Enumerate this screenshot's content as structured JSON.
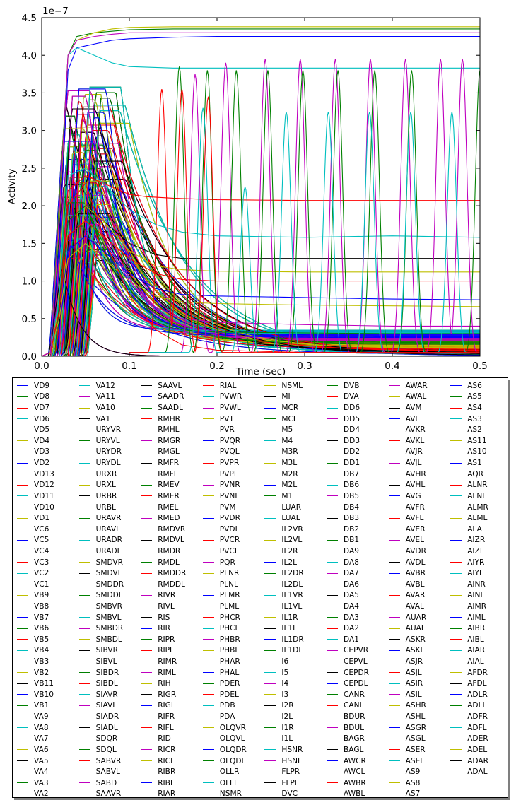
{
  "chart_data": {
    "type": "line",
    "title": "",
    "xlabel": "Time (sec)",
    "ylabel": "Activity",
    "offset_text": "1e−7",
    "xlim": [
      0,
      0.5
    ],
    "ylim": [
      0,
      4.5
    ],
    "grid": false,
    "legend_placement": "below-plot",
    "x_ticks": [
      "0.0",
      "0.1",
      "0.2",
      "0.3",
      "0.4",
      "0.5"
    ],
    "y_ticks": [
      "0.0",
      "0.5",
      "1.0",
      "1.5",
      "2.0",
      "2.5",
      "3.0",
      "3.5",
      "4.0",
      "4.5"
    ],
    "color_cycle": [
      "#0000ff",
      "#008000",
      "#ff0000",
      "#00bfbf",
      "#bf00bf",
      "#bfbf00",
      "#000000"
    ],
    "series_names": [
      "VD9",
      "VD8",
      "VD7",
      "VD6",
      "VD5",
      "VD4",
      "VD3",
      "VD2",
      "VD13",
      "VD12",
      "VD11",
      "VD10",
      "VD1",
      "VC6",
      "VC5",
      "VC4",
      "VC3",
      "VC2",
      "VC1",
      "VB9",
      "VB8",
      "VB7",
      "VB6",
      "VB5",
      "VB4",
      "VB3",
      "VB2",
      "VB11",
      "VB10",
      "VB1",
      "VA9",
      "VA8",
      "VA7",
      "VA6",
      "VA5",
      "VA4",
      "VA3",
      "VA2",
      "VA12",
      "VA11",
      "VA10",
      "VA1",
      "URYVR",
      "URYVL",
      "URYDR",
      "URYDL",
      "URXR",
      "URXL",
      "URBR",
      "URBL",
      "URAVR",
      "URAVL",
      "URADR",
      "URADL",
      "SMDVR",
      "SMDVL",
      "SMDDR",
      "SMDDL",
      "SMBVR",
      "SMBVL",
      "SMBDR",
      "SMBDL",
      "SIBVR",
      "SIBVL",
      "SIBDR",
      "SIBDL",
      "SIAVR",
      "SIAVL",
      "SIADR",
      "SIADL",
      "SDQR",
      "SDQL",
      "SABVR",
      "SABVL",
      "SABD",
      "SAAVR",
      "SAAVL",
      "SAADR",
      "SAADL",
      "RMHR",
      "RMHL",
      "RMGR",
      "RMGL",
      "RMFR",
      "RMFL",
      "RMEV",
      "RMER",
      "RMEL",
      "RMED",
      "RMDVR",
      "RMDVL",
      "RMDR",
      "RMDL",
      "RMDDR",
      "RMDDL",
      "RIVR",
      "RIVL",
      "RIS",
      "RIR",
      "RIPR",
      "RIPL",
      "RIMR",
      "RIML",
      "RIH",
      "RIGR",
      "RIGL",
      "RIFR",
      "RIFL",
      "RID",
      "RICR",
      "RICL",
      "RIBR",
      "RIBL",
      "RIAR",
      "RIAL",
      "PVWR",
      "PVWL",
      "PVT",
      "PVR",
      "PVQR",
      "PVQL",
      "PVPR",
      "PVPL",
      "PVNR",
      "PVNL",
      "PVM",
      "PVDR",
      "PVDL",
      "PVCR",
      "PVCL",
      "PQR",
      "PLNR",
      "PLNL",
      "PLMR",
      "PLML",
      "PHCR",
      "PHCL",
      "PHBR",
      "PHBL",
      "PHAR",
      "PHAL",
      "PDER",
      "PDEL",
      "PDB",
      "PDA",
      "OLQVR",
      "OLQVL",
      "OLQDR",
      "OLQDL",
      "OLLR",
      "OLLL",
      "NSMR",
      "NSML",
      "MI",
      "MCR",
      "MCL",
      "M5",
      "M4",
      "M3R",
      "M3L",
      "M2R",
      "M2L",
      "M1",
      "LUAR",
      "LUAL",
      "IL2VR",
      "IL2VL",
      "IL2R",
      "IL2L",
      "IL2DR",
      "IL2DL",
      "IL1VR",
      "IL1VL",
      "IL1R",
      "IL1L",
      "IL1DR",
      "IL1DL",
      "I6",
      "I5",
      "I4",
      "I3",
      "I2R",
      "I2L",
      "I1R",
      "I1L",
      "HSNR",
      "HSNL",
      "FLPR",
      "FLPL",
      "DVC",
      "DVB",
      "DVA",
      "DD6",
      "DD5",
      "DD4",
      "DD3",
      "DD2",
      "DD1",
      "DB7",
      "DB6",
      "DB5",
      "DB4",
      "DB3",
      "DB2",
      "DB1",
      "DA9",
      "DA8",
      "DA7",
      "DA6",
      "DA5",
      "DA4",
      "DA3",
      "DA2",
      "DA1",
      "CEPVR",
      "CEPVL",
      "CEPDR",
      "CEPDL",
      "CANR",
      "CANL",
      "BDUR",
      "BDUL",
      "BAGR",
      "BAGL",
      "AWCR",
      "AWCL",
      "AWBR",
      "AWBL",
      "AWAR",
      "AWAL",
      "AVM",
      "AVL",
      "AVKR",
      "AVKL",
      "AVJR",
      "AVJL",
      "AVHR",
      "AVHL",
      "AVG",
      "AVFR",
      "AVFL",
      "AVER",
      "AVEL",
      "AVDR",
      "AVDL",
      "AVBR",
      "AVBL",
      "AVAR",
      "AVAL",
      "AUAR",
      "AUAL",
      "ASKR",
      "ASKL",
      "ASJR",
      "ASJL",
      "ASIR",
      "ASIL",
      "ASHR",
      "ASHL",
      "ASGR",
      "ASGL",
      "ASER",
      "ASEL",
      "AS9",
      "AS8",
      "AS7",
      "AS6",
      "AS5",
      "AS4",
      "AS3",
      "AS2",
      "AS11",
      "AS10",
      "AS1",
      "AQR",
      "ALNR",
      "ALNL",
      "ALMR",
      "ALML",
      "ALA",
      "AIZR",
      "AIZL",
      "AIYR",
      "AIYL",
      "AINR",
      "AINL",
      "AIMR",
      "AIML",
      "AIBR",
      "AIBL",
      "AIAR",
      "AIAL",
      "AFDR",
      "AFDL",
      "ADLR",
      "ADLL",
      "ADFR",
      "ADFL",
      "ADER",
      "ADEL",
      "ADAR",
      "ADAL"
    ],
    "representative_series": [
      {
        "color": "#0000ff",
        "x": [
          0,
          0.01,
          0.02,
          0.03,
          0.04,
          0.06,
          0.08,
          0.1,
          0.15,
          0.2,
          0.3,
          0.4,
          0.5
        ],
        "y": [
          0,
          0.05,
          1.5,
          3.8,
          4.1,
          4.15,
          4.2,
          4.22,
          4.24,
          4.25,
          4.25,
          4.25,
          4.25
        ]
      },
      {
        "color": "#008000",
        "x": [
          0,
          0.01,
          0.02,
          0.03,
          0.04,
          0.06,
          0.08,
          0.1,
          0.15,
          0.2,
          0.3,
          0.4,
          0.5
        ],
        "y": [
          0,
          0.05,
          2.0,
          4.0,
          4.25,
          4.3,
          4.32,
          4.34,
          4.35,
          4.35,
          4.35,
          4.35,
          4.35
        ]
      },
      {
        "color": "#00bfbf",
        "x": [
          0,
          0.01,
          0.02,
          0.03,
          0.04,
          0.06,
          0.08,
          0.1,
          0.15,
          0.2,
          0.3,
          0.4,
          0.5
        ],
        "y": [
          0,
          0.05,
          1.8,
          4.0,
          4.1,
          4.0,
          3.9,
          3.85,
          3.83,
          3.83,
          3.83,
          3.83,
          3.83
        ]
      },
      {
        "color": "#bfbf00",
        "x": [
          0,
          0.01,
          0.02,
          0.03,
          0.04,
          0.06,
          0.08,
          0.1,
          0.15,
          0.2,
          0.3,
          0.4,
          0.5
        ],
        "y": [
          0,
          0.05,
          1.8,
          4.0,
          4.2,
          4.3,
          4.35,
          4.37,
          4.38,
          4.38,
          4.38,
          4.38,
          4.38
        ]
      },
      {
        "color": "#ff0000",
        "x": [
          0,
          0.01,
          0.02,
          0.03,
          0.05,
          0.07,
          0.09,
          0.1,
          0.12,
          0.15,
          0.2,
          0.3,
          0.4,
          0.5
        ],
        "y": [
          0,
          0.05,
          0.8,
          2.2,
          2.4,
          2.3,
          2.2,
          2.15,
          2.12,
          2.1,
          2.08,
          2.07,
          2.07,
          2.07
        ]
      },
      {
        "color": "#00bfbf",
        "x": [
          0,
          0.01,
          0.02,
          0.03,
          0.05,
          0.07,
          0.1,
          0.13,
          0.16,
          0.2,
          0.3,
          0.4,
          0.5
        ],
        "y": [
          0,
          0.05,
          0.8,
          2.4,
          2.5,
          2.3,
          1.95,
          1.75,
          1.65,
          1.6,
          1.58,
          1.6,
          1.58
        ]
      },
      {
        "color": "#000000",
        "x": [
          0,
          0.01,
          0.02,
          0.03,
          0.05,
          0.07,
          0.1,
          0.13,
          0.16,
          0.2,
          0.3,
          0.4,
          0.5
        ],
        "y": [
          0,
          0.05,
          0.6,
          1.8,
          2.0,
          1.8,
          1.5,
          1.35,
          1.3,
          1.3,
          1.3,
          1.3,
          1.3
        ]
      },
      {
        "color": "#bfbf00",
        "x": [
          0,
          0.01,
          0.02,
          0.03,
          0.05,
          0.07,
          0.1,
          0.13,
          0.16,
          0.2,
          0.3,
          0.4,
          0.5
        ],
        "y": [
          0,
          0.05,
          0.6,
          1.8,
          2.0,
          1.8,
          1.4,
          1.2,
          1.15,
          1.13,
          1.12,
          1.12,
          1.12
        ]
      },
      {
        "color": "#ff0000",
        "x": [
          0,
          0.01,
          0.02,
          0.03,
          0.05,
          0.07,
          0.1,
          0.13,
          0.16,
          0.2,
          0.3,
          0.4,
          0.5
        ],
        "y": [
          0,
          0.05,
          0.6,
          1.6,
          1.8,
          1.6,
          1.3,
          1.1,
          1.02,
          1.0,
          1.0,
          1.0,
          1.0
        ]
      },
      {
        "color": "#0000ff",
        "x": [
          0,
          0.01,
          0.02,
          0.03,
          0.05,
          0.07,
          0.1,
          0.13,
          0.16,
          0.2,
          0.3,
          0.4,
          0.5
        ],
        "y": [
          0,
          0.05,
          0.5,
          1.4,
          1.6,
          1.4,
          1.1,
          0.9,
          0.82,
          0.8,
          0.78,
          0.76,
          0.75
        ]
      },
      {
        "color": "#bfbf00",
        "x": [
          0,
          0.01,
          0.02,
          0.03,
          0.05,
          0.07,
          0.1,
          0.13,
          0.16,
          0.2,
          0.3,
          0.4,
          0.5
        ],
        "y": [
          0,
          0.05,
          0.5,
          1.3,
          1.5,
          1.3,
          1.0,
          0.8,
          0.72,
          0.7,
          0.68,
          0.67,
          0.66
        ]
      },
      {
        "color": "#bf00bf",
        "x": [
          0,
          0.01,
          0.02,
          0.03,
          0.05,
          0.07,
          0.1,
          0.13,
          0.16,
          0.2,
          0.3,
          0.4,
          0.5
        ],
        "y": [
          0,
          0.05,
          0.6,
          1.8,
          2.0,
          1.6,
          1.0,
          0.65,
          0.5,
          0.45,
          0.42,
          0.4,
          0.4
        ]
      },
      {
        "color": "#008000",
        "x": [
          0,
          0.01,
          0.02,
          0.03,
          0.05,
          0.07,
          0.1,
          0.13,
          0.16,
          0.2,
          0.3,
          0.4,
          0.5
        ],
        "y": [
          0,
          0.05,
          0.6,
          1.8,
          2.0,
          1.5,
          0.9,
          0.5,
          0.35,
          0.32,
          0.31,
          0.3,
          0.3
        ]
      },
      {
        "color": "#ff0000",
        "x": [
          0,
          0.01,
          0.02,
          0.03,
          0.05,
          0.07,
          0.1,
          0.13,
          0.16,
          0.2,
          0.3,
          0.4,
          0.5
        ],
        "y": [
          0,
          0.05,
          0.6,
          2.0,
          2.3,
          1.6,
          0.8,
          0.35,
          0.15,
          0.08,
          0.05,
          0.04,
          0.04
        ]
      },
      {
        "color": "#bf00bf",
        "x": [
          0,
          0.01,
          0.02,
          0.03,
          0.04,
          0.06,
          0.08,
          0.1,
          0.15,
          0.2,
          0.3,
          0.4,
          0.5
        ],
        "y": [
          0,
          0.05,
          1.9,
          4.0,
          4.2,
          4.25,
          4.28,
          4.3,
          4.3,
          4.3,
          4.3,
          4.3,
          4.3
        ]
      }
    ],
    "oscillating_series": [
      {
        "color": "#bf00bf",
        "peaks_x": [
          0.175,
          0.21,
          0.255,
          0.295,
          0.335,
          0.375,
          0.415,
          0.455,
          0.48
        ],
        "peaks_y": [
          3.75,
          3.9,
          3.95,
          3.95,
          3.95,
          3.95,
          3.95,
          3.95,
          3.95
        ]
      },
      {
        "color": "#008000",
        "peaks_x": [
          0.157,
          0.189,
          0.222,
          0.258,
          0.298,
          0.338,
          0.38,
          0.422,
          0.5
        ],
        "peaks_y": [
          3.85,
          3.8,
          3.8,
          3.8,
          3.8,
          3.8,
          3.8,
          3.8,
          3.8
        ]
      },
      {
        "color": "#00bfbf",
        "peaks_x": [
          0.184,
          0.232,
          0.279,
          0.327,
          0.374,
          0.421,
          0.468
        ],
        "peaks_y": [
          3.3,
          2.25,
          3.25,
          3.25,
          3.25,
          3.25,
          3.25
        ]
      },
      {
        "color": "#ff0000",
        "peaks_x": [
          0.137,
          0.16,
          0.19
        ],
        "peaks_y": [
          3.55,
          3.55,
          3.45
        ]
      }
    ]
  }
}
